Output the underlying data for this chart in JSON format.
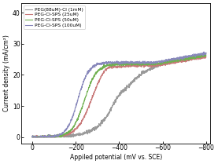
{
  "title": "",
  "xlabel": "Appiled potential (mV vs. SCE)",
  "ylabel": "Current density (mA/cm²)",
  "xlim": [
    50,
    -820
  ],
  "ylim": [
    -2,
    43
  ],
  "yticks": [
    0,
    10,
    20,
    30,
    40
  ],
  "xticks": [
    0,
    -200,
    -400,
    -600,
    -800
  ],
  "legend": [
    {
      "label": "PEG(88uM)-Cl (1mM)",
      "color": "#999999"
    },
    {
      "label": "PEG-Cl-SPS (25uM)",
      "color": "#c87878"
    },
    {
      "label": "PEG-Cl-SPS (50uM)",
      "color": "#70b050"
    },
    {
      "label": "PEG-Cl-SPS (100uM)",
      "color": "#8888bb"
    }
  ],
  "background_color": "#ffffff",
  "figsize": [
    2.77,
    2.09
  ],
  "dpi": 100
}
